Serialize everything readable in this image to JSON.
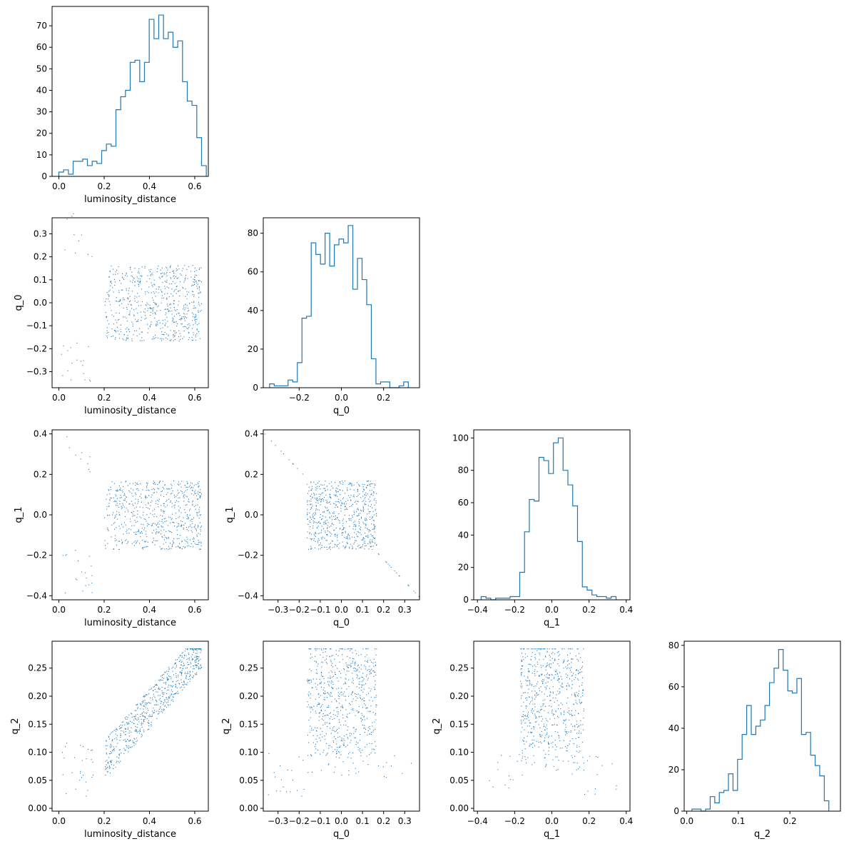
{
  "chart_data": {
    "type": "scatter",
    "layout": "corner-plot",
    "variables": [
      "luminosity_distance",
      "q_0",
      "q_1",
      "q_2"
    ],
    "axis_labels": [
      "luminosity_distance",
      "q_0",
      "q_1",
      "q_2"
    ],
    "color": "#1f77b4",
    "grid": false,
    "ranges": {
      "luminosity_distance": [
        -0.03,
        0.66
      ],
      "q_0": [
        -0.37,
        0.37
      ],
      "q_1": [
        -0.42,
        0.42
      ],
      "q_2": [
        -0.005,
        0.298
      ]
    },
    "ticks": {
      "luminosity_distance": [
        0.0,
        0.2,
        0.4,
        0.6
      ],
      "q_0": [
        -0.3,
        -0.2,
        -0.1,
        0.0,
        0.1,
        0.2,
        0.3
      ],
      "q_0_hist": [
        -0.2,
        0.0,
        0.2
      ],
      "q_1": [
        -0.4,
        -0.2,
        0.0,
        0.2,
        0.4
      ],
      "q_2": [
        0.0,
        0.05,
        0.1,
        0.15,
        0.2,
        0.25
      ],
      "q_2_hist": [
        0.0,
        0.1,
        0.2
      ]
    },
    "tick_labels": {
      "luminosity_distance": [
        "0.0",
        "0.2",
        "0.4",
        "0.6"
      ],
      "q_0": [
        "−0.3",
        "−0.2",
        "−0.1",
        "0.0",
        "0.1",
        "0.2",
        "0.3"
      ],
      "q_0_hist": [
        "−0.2",
        "0.0",
        "0.2"
      ],
      "q_1": [
        "−0.4",
        "−0.2",
        "0.0",
        "0.2",
        "0.4"
      ],
      "q_2": [
        "0.00",
        "0.05",
        "0.10",
        "0.15",
        "0.20",
        "0.25"
      ],
      "q_2_hist": [
        "0.0",
        "0.1",
        "0.2"
      ]
    },
    "histograms": {
      "luminosity_distance": {
        "bin_start": 0.0,
        "bin_width": 0.021,
        "counts": [
          2,
          3,
          1,
          7,
          7,
          8,
          5,
          7,
          6,
          12,
          15,
          14,
          31,
          37,
          40,
          53,
          54,
          44,
          53,
          73,
          64,
          75,
          64,
          67,
          60,
          63,
          44,
          35,
          33,
          18,
          5
        ],
        "ylim": [
          0,
          79
        ],
        "yticks": [
          0,
          10,
          20,
          30,
          40,
          50,
          60,
          70
        ]
      },
      "q_0": {
        "bin_start": -0.34,
        "bin_width": 0.0219,
        "counts": [
          2,
          1,
          1,
          1,
          4,
          3,
          13,
          36,
          37,
          75,
          69,
          64,
          80,
          63,
          74,
          77,
          75,
          84,
          51,
          67,
          56,
          43,
          15,
          2,
          3,
          3,
          0,
          0,
          1,
          3
        ],
        "ylim": [
          0,
          88
        ],
        "yticks": [
          0,
          20,
          40,
          60,
          80
        ]
      },
      "q_1": {
        "bin_start": -0.38,
        "bin_width": 0.0259,
        "counts": [
          2,
          1,
          0,
          1,
          1,
          1,
          2,
          2,
          17,
          42,
          62,
          61,
          88,
          86,
          78,
          97,
          100,
          80,
          71,
          58,
          36,
          8,
          6,
          3,
          2,
          2,
          1,
          2
        ],
        "ylim": [
          0,
          105
        ],
        "yticks": [
          0,
          20,
          40,
          60,
          80,
          100
        ]
      },
      "q_2": {
        "bin_start": 0.01,
        "bin_width": 0.00885,
        "counts": [
          1,
          1,
          0,
          1,
          7,
          4,
          9,
          10,
          18,
          10,
          25,
          37,
          51,
          37,
          41,
          44,
          51,
          62,
          69,
          78,
          68,
          58,
          57,
          64,
          37,
          38,
          27,
          22,
          17,
          5
        ],
        "ylim": [
          0,
          82
        ],
        "yticks": [
          0,
          20,
          40,
          60,
          80
        ]
      }
    }
  }
}
